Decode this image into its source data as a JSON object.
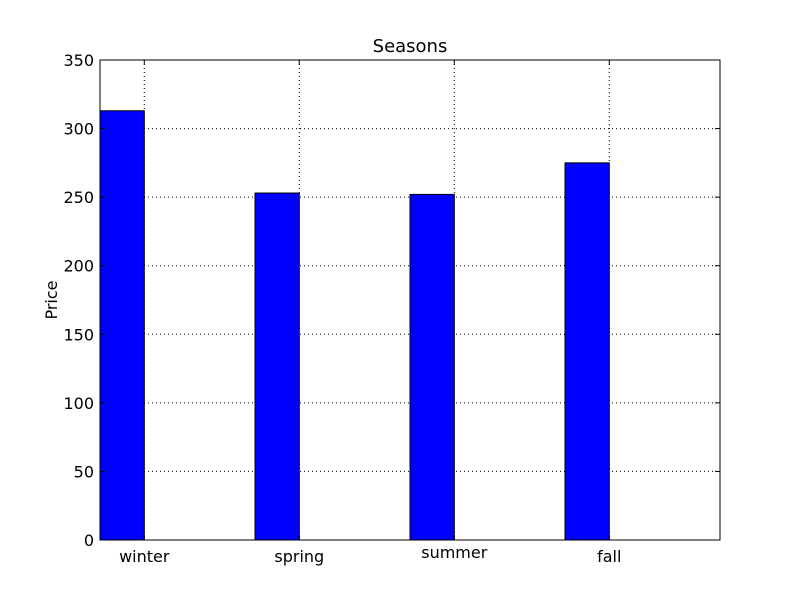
{
  "chart_data": {
    "type": "bar",
    "title": "Seasons",
    "xlabel": "",
    "ylabel": "Price",
    "categories": [
      "winter",
      "spring",
      "summer",
      "fall"
    ],
    "values": [
      313,
      253,
      252,
      275
    ],
    "ylim": [
      0,
      350
    ],
    "yticks": [
      0,
      50,
      100,
      150,
      200,
      250,
      300,
      350
    ],
    "grid": true,
    "bar_color": "#0000ff",
    "edge_color": "#000000"
  }
}
